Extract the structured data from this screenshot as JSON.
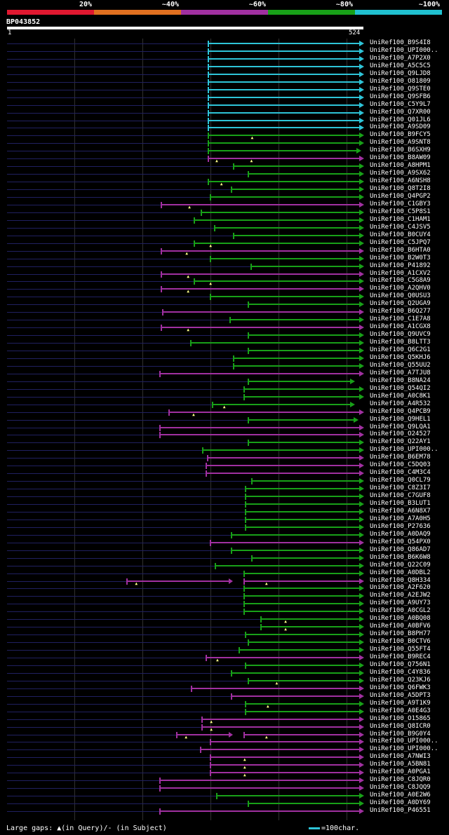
{
  "legend": {
    "segments": [
      {
        "label": "20%",
        "color": "#e01830"
      },
      {
        "label": "~40%",
        "color": "#e07020"
      },
      {
        "label": "~60%",
        "color": "#a030a0"
      },
      {
        "label": "~80%",
        "color": "#18a018"
      },
      {
        "label": "~100%",
        "color": "#20c0d0"
      }
    ]
  },
  "query": {
    "name": "BP043852",
    "start_label": "1",
    "end_label": "524",
    "length": 524
  },
  "hits": [
    {
      "name": "UniRef100_B9S4I8",
      "start": 295,
      "end": 524,
      "color": "#2ec4d8",
      "arrow": "right",
      "gaps": []
    },
    {
      "name": "UniRef100_UPI000..",
      "start": 295,
      "end": 524,
      "color": "#2ec4d8",
      "arrow": "right",
      "gaps": []
    },
    {
      "name": "UniRef100_A7P2X0",
      "start": 295,
      "end": 524,
      "color": "#2ec4d8",
      "arrow": "right",
      "gaps": []
    },
    {
      "name": "UniRef100_A5C5C5",
      "start": 295,
      "end": 524,
      "color": "#2ec4d8",
      "arrow": "right",
      "gaps": []
    },
    {
      "name": "UniRef100_Q9LJD8",
      "start": 295,
      "end": 524,
      "color": "#2ec4d8",
      "arrow": "right",
      "gaps": []
    },
    {
      "name": "UniRef100_O81809",
      "start": 295,
      "end": 524,
      "color": "#2ec4d8",
      "arrow": "right",
      "gaps": []
    },
    {
      "name": "UniRef100_Q9STE0",
      "start": 295,
      "end": 524,
      "color": "#2ec4d8",
      "arrow": "right",
      "gaps": []
    },
    {
      "name": "UniRef100_Q9SFB6",
      "start": 295,
      "end": 524,
      "color": "#2ec4d8",
      "arrow": "right",
      "gaps": []
    },
    {
      "name": "UniRef100_C5Y9L7",
      "start": 295,
      "end": 524,
      "color": "#2ec4d8",
      "arrow": "right",
      "gaps": []
    },
    {
      "name": "UniRef100_Q7XR00",
      "start": 295,
      "end": 524,
      "color": "#2ec4d8",
      "arrow": "right",
      "gaps": []
    },
    {
      "name": "UniRef100_Q01JL6",
      "start": 295,
      "end": 524,
      "color": "#2ec4d8",
      "arrow": "right",
      "gaps": []
    },
    {
      "name": "UniRef100_A9SD09",
      "start": 295,
      "end": 524,
      "color": "#2ec4d8",
      "arrow": "right",
      "gaps": []
    },
    {
      "name": "UniRef100_B9FCY5",
      "start": 295,
      "end": 524,
      "color": "#18a018",
      "arrow": "right",
      "gaps": [
        362
      ]
    },
    {
      "name": "UniRef100_A9SNT8",
      "start": 295,
      "end": 524,
      "color": "#18a018",
      "arrow": "right",
      "gaps": []
    },
    {
      "name": "UniRef100_B6SXH9",
      "start": 295,
      "end": 520,
      "color": "#18a018",
      "arrow": "right",
      "gaps": []
    },
    {
      "name": "UniRef100_B8AW09",
      "start": 295,
      "end": 524,
      "color": "#a030a0",
      "arrow": "right",
      "gaps": [
        310,
        361
      ]
    },
    {
      "name": "UniRef100_A8HPM1",
      "start": 332,
      "end": 524,
      "color": "#18a018",
      "arrow": "right",
      "gaps": []
    },
    {
      "name": "UniRef100_A9SX62",
      "start": 354,
      "end": 524,
      "color": "#18a018",
      "arrow": "right",
      "gaps": []
    },
    {
      "name": "UniRef100_A6NSH8",
      "start": 295,
      "end": 524,
      "color": "#18a018",
      "arrow": "right",
      "gaps": [
        317
      ]
    },
    {
      "name": "UniRef100_Q8T2I8",
      "start": 329,
      "end": 524,
      "color": "#18a018",
      "arrow": "right",
      "gaps": []
    },
    {
      "name": "UniRef100_Q4PGP2",
      "start": 299,
      "end": 524,
      "color": "#18a018",
      "arrow": "right",
      "gaps": []
    },
    {
      "name": "UniRef100_C1GBY3",
      "start": 226,
      "end": 524,
      "color": "#a030a0",
      "arrow": "right",
      "gaps": [
        270
      ]
    },
    {
      "name": "UniRef100_C5P8S1",
      "start": 285,
      "end": 524,
      "color": "#18a018",
      "arrow": "right",
      "gaps": []
    },
    {
      "name": "UniRef100_C1HAM1",
      "start": 275,
      "end": 524,
      "color": "#18a018",
      "arrow": "right",
      "gaps": []
    },
    {
      "name": "UniRef100_C4JSV5",
      "start": 305,
      "end": 524,
      "color": "#18a018",
      "arrow": "right",
      "gaps": []
    },
    {
      "name": "UniRef100_B0CUY4",
      "start": 333,
      "end": 524,
      "color": "#18a018",
      "arrow": "right",
      "gaps": []
    },
    {
      "name": "UniRef100_C5JPQ7",
      "start": 275,
      "end": 524,
      "color": "#18a018",
      "arrow": "right",
      "gaps": [
        301
      ]
    },
    {
      "name": "UniRef100_B6HTA0",
      "start": 226,
      "end": 524,
      "color": "#a030a0",
      "arrow": "right",
      "gaps": [
        266
      ]
    },
    {
      "name": "UniRef100_B2W0T3",
      "start": 299,
      "end": 524,
      "color": "#18a018",
      "arrow": "right",
      "gaps": []
    },
    {
      "name": "UniRef100_P41892",
      "start": 358,
      "end": 524,
      "color": "#18a018",
      "arrow": "right",
      "gaps": []
    },
    {
      "name": "UniRef100_A1CXV2",
      "start": 226,
      "end": 524,
      "color": "#a030a0",
      "arrow": "right",
      "gaps": [
        268
      ]
    },
    {
      "name": "UniRef100_C5G8A9",
      "start": 275,
      "end": 524,
      "color": "#18a018",
      "arrow": "right",
      "gaps": [
        301
      ]
    },
    {
      "name": "UniRef100_A2QHV0",
      "start": 226,
      "end": 524,
      "color": "#a030a0",
      "arrow": "right",
      "gaps": [
        268
      ]
    },
    {
      "name": "UniRef100_Q0USU3",
      "start": 299,
      "end": 524,
      "color": "#18a018",
      "arrow": "right",
      "gaps": []
    },
    {
      "name": "UniRef100_Q2UGA9",
      "start": 354,
      "end": 524,
      "color": "#18a018",
      "arrow": "right",
      "gaps": []
    },
    {
      "name": "UniRef100_B6Q277",
      "start": 229,
      "end": 524,
      "color": "#a030a0",
      "arrow": "right",
      "gaps": []
    },
    {
      "name": "UniRef100_C1E7A8",
      "start": 327,
      "end": 524,
      "color": "#18a018",
      "arrow": "right",
      "gaps": []
    },
    {
      "name": "UniRef100_A1CGX8",
      "start": 226,
      "end": 524,
      "color": "#a030a0",
      "arrow": "right",
      "gaps": [
        268
      ]
    },
    {
      "name": "UniRef100_Q9UVC9",
      "start": 354,
      "end": 524,
      "color": "#18a018",
      "arrow": "right",
      "gaps": []
    },
    {
      "name": "UniRef100_B8LTT3",
      "start": 270,
      "end": 524,
      "color": "#18a018",
      "arrow": "right",
      "gaps": []
    },
    {
      "name": "UniRef100_Q6C2G1",
      "start": 354,
      "end": 524,
      "color": "#18a018",
      "arrow": "right",
      "gaps": []
    },
    {
      "name": "UniRef100_Q5KHJ6",
      "start": 333,
      "end": 524,
      "color": "#18a018",
      "arrow": "right",
      "gaps": []
    },
    {
      "name": "UniRef100_Q55UU2",
      "start": 333,
      "end": 524,
      "color": "#18a018",
      "arrow": "right",
      "gaps": []
    },
    {
      "name": "UniRef100_A7TJU8",
      "start": 224,
      "end": 524,
      "color": "#a030a0",
      "arrow": "right",
      "gaps": []
    },
    {
      "name": "UniRef100_B8NA24",
      "start": 354,
      "end": 511,
      "color": "#18a018",
      "arrow": "right",
      "gaps": []
    },
    {
      "name": "UniRef100_Q54QI2",
      "start": 348,
      "end": 524,
      "color": "#18a018",
      "arrow": "right",
      "gaps": []
    },
    {
      "name": "UniRef100_A0C8K1",
      "start": 348,
      "end": 524,
      "color": "#18a018",
      "arrow": "right",
      "gaps": []
    },
    {
      "name": "UniRef100_A4R532",
      "start": 302,
      "end": 511,
      "color": "#18a018",
      "arrow": "right",
      "gaps": [
        321
      ]
    },
    {
      "name": "UniRef100_Q4PCB9",
      "start": 238,
      "end": 524,
      "color": "#a030a0",
      "arrow": "right",
      "gaps": [
        276
      ]
    },
    {
      "name": "UniRef100_Q9HEL1",
      "start": 354,
      "end": 516,
      "color": "#18a018",
      "arrow": "right",
      "gaps": []
    },
    {
      "name": "UniRef100_Q9LQA1",
      "start": 224,
      "end": 524,
      "color": "#a030a0",
      "arrow": "right",
      "gaps": []
    },
    {
      "name": "UniRef100_O24527",
      "start": 224,
      "end": 524,
      "color": "#a030a0",
      "arrow": "right",
      "gaps": []
    },
    {
      "name": "UniRef100_Q22AY1",
      "start": 354,
      "end": 524,
      "color": "#18a018",
      "arrow": "right",
      "gaps": []
    },
    {
      "name": "UniRef100_UPI000..",
      "start": 287,
      "end": 524,
      "color": "#18a018",
      "arrow": "right",
      "gaps": []
    },
    {
      "name": "UniRef100_B6EM78",
      "start": 294,
      "end": 524,
      "color": "#a030a0",
      "arrow": "right",
      "gaps": []
    },
    {
      "name": "UniRef100_C5DQ03",
      "start": 292,
      "end": 524,
      "color": "#a030a0",
      "arrow": "right",
      "gaps": []
    },
    {
      "name": "UniRef100_C4M3C4",
      "start": 292,
      "end": 524,
      "color": "#a030a0",
      "arrow": "right",
      "gaps": []
    },
    {
      "name": "UniRef100_Q0CL79",
      "start": 359,
      "end": 524,
      "color": "#18a018",
      "arrow": "right",
      "gaps": []
    },
    {
      "name": "UniRef100_C8Z3I7",
      "start": 350,
      "end": 524,
      "color": "#18a018",
      "arrow": "right",
      "gaps": []
    },
    {
      "name": "UniRef100_C7GUF8",
      "start": 350,
      "end": 524,
      "color": "#18a018",
      "arrow": "right",
      "gaps": []
    },
    {
      "name": "UniRef100_B3LUT1",
      "start": 350,
      "end": 524,
      "color": "#18a018",
      "arrow": "right",
      "gaps": []
    },
    {
      "name": "UniRef100_A6N8X7",
      "start": 350,
      "end": 524,
      "color": "#18a018",
      "arrow": "right",
      "gaps": []
    },
    {
      "name": "UniRef100_A7A0H5",
      "start": 350,
      "end": 524,
      "color": "#18a018",
      "arrow": "right",
      "gaps": []
    },
    {
      "name": "UniRef100_P27636",
      "start": 350,
      "end": 524,
      "color": "#18a018",
      "arrow": "right",
      "gaps": []
    },
    {
      "name": "UniRef100_A0DAQ9",
      "start": 329,
      "end": 524,
      "color": "#18a018",
      "arrow": "right",
      "gaps": []
    },
    {
      "name": "UniRef100_Q54PX0",
      "start": 299,
      "end": 524,
      "color": "#a030a0",
      "arrow": "right",
      "gaps": []
    },
    {
      "name": "UniRef100_Q86AD7",
      "start": 329,
      "end": 524,
      "color": "#18a018",
      "arrow": "right",
      "gaps": []
    },
    {
      "name": "UniRef100_B6K6W8",
      "start": 359,
      "end": 524,
      "color": "#18a018",
      "arrow": "right",
      "gaps": []
    },
    {
      "name": "UniRef100_Q22C09",
      "start": 306,
      "end": 524,
      "color": "#18a018",
      "arrow": "right",
      "gaps": []
    },
    {
      "name": "UniRef100_A0DBL2",
      "start": 348,
      "end": 524,
      "color": "#18a018",
      "arrow": "right",
      "gaps": []
    },
    {
      "name": "UniRef100_Q8H334",
      "start": 176,
      "end": 524,
      "color": "#a030a0",
      "arrow": "right",
      "gaps": [
        192,
        383
      ],
      "split": [
        333,
        348
      ]
    },
    {
      "name": "UniRef100_A2F620",
      "start": 348,
      "end": 524,
      "color": "#18a018",
      "arrow": "right",
      "gaps": []
    },
    {
      "name": "UniRef100_A2EJW2",
      "start": 348,
      "end": 524,
      "color": "#18a018",
      "arrow": "right",
      "gaps": []
    },
    {
      "name": "UniRef100_A9UY73",
      "start": 348,
      "end": 524,
      "color": "#18a018",
      "arrow": "right",
      "gaps": []
    },
    {
      "name": "UniRef100_A0CGL2",
      "start": 348,
      "end": 524,
      "color": "#18a018",
      "arrow": "right",
      "gaps": []
    },
    {
      "name": "UniRef100_A0BQ08",
      "start": 373,
      "end": 524,
      "color": "#18a018",
      "arrow": "right",
      "gaps": [
        411
      ]
    },
    {
      "name": "UniRef100_A0BFV6",
      "start": 373,
      "end": 524,
      "color": "#18a018",
      "arrow": "right",
      "gaps": [
        411
      ]
    },
    {
      "name": "UniRef100_B8PH77",
      "start": 350,
      "end": 524,
      "color": "#18a018",
      "arrow": "right",
      "gaps": []
    },
    {
      "name": "UniRef100_B0CTV6",
      "start": 354,
      "end": 524,
      "color": "#18a018",
      "arrow": "right",
      "gaps": []
    },
    {
      "name": "UniRef100_Q55FT4",
      "start": 341,
      "end": 524,
      "color": "#18a018",
      "arrow": "right",
      "gaps": []
    },
    {
      "name": "UniRef100_B9REC4",
      "start": 292,
      "end": 524,
      "color": "#a030a0",
      "arrow": "right",
      "gaps": [
        311
      ]
    },
    {
      "name": "UniRef100_Q756N1",
      "start": 350,
      "end": 524,
      "color": "#18a018",
      "arrow": "right",
      "gaps": []
    },
    {
      "name": "UniRef100_C4Y836",
      "start": 329,
      "end": 524,
      "color": "#18a018",
      "arrow": "right",
      "gaps": []
    },
    {
      "name": "UniRef100_Q23KJ6",
      "start": 354,
      "end": 524,
      "color": "#18a018",
      "arrow": "right",
      "gaps": [
        398
      ]
    },
    {
      "name": "UniRef100_Q6FWK3",
      "start": 271,
      "end": 524,
      "color": "#a030a0",
      "arrow": "right",
      "gaps": []
    },
    {
      "name": "UniRef100_A5DPT3",
      "start": 329,
      "end": 524,
      "color": "#a030a0",
      "arrow": "right",
      "gaps": []
    },
    {
      "name": "UniRef100_A9T1K9",
      "start": 350,
      "end": 524,
      "color": "#18a018",
      "arrow": "right",
      "gaps": [
        385
      ]
    },
    {
      "name": "UniRef100_A0E4G3",
      "start": 350,
      "end": 524,
      "color": "#18a018",
      "arrow": "right",
      "gaps": []
    },
    {
      "name": "UniRef100_O15865",
      "start": 286,
      "end": 524,
      "color": "#a030a0",
      "arrow": "right",
      "gaps": [
        302
      ]
    },
    {
      "name": "UniRef100_Q8ICR0",
      "start": 286,
      "end": 524,
      "color": "#a030a0",
      "arrow": "right",
      "gaps": [
        302
      ]
    },
    {
      "name": "UniRef100_B9G0Y4",
      "start": 249,
      "end": 524,
      "color": "#a030a0",
      "arrow": "right",
      "gaps": [
        265,
        383
      ],
      "split": [
        333,
        348
      ]
    },
    {
      "name": "UniRef100_UPI000..",
      "start": 299,
      "end": 524,
      "color": "#a030a0",
      "arrow": "right",
      "gaps": []
    },
    {
      "name": "UniRef100_UPI000..",
      "start": 284,
      "end": 524,
      "color": "#a030a0",
      "arrow": "right",
      "gaps": []
    },
    {
      "name": "UniRef100_A7NWI3",
      "start": 299,
      "end": 524,
      "color": "#a030a0",
      "arrow": "right",
      "gaps": [
        351
      ]
    },
    {
      "name": "UniRef100_A5BN81",
      "start": 299,
      "end": 524,
      "color": "#a030a0",
      "arrow": "right",
      "gaps": [
        351
      ]
    },
    {
      "name": "UniRef100_A0PGA1",
      "start": 299,
      "end": 524,
      "color": "#a030a0",
      "arrow": "right",
      "gaps": [
        351
      ]
    },
    {
      "name": "UniRef100_C8JQR0",
      "start": 224,
      "end": 524,
      "color": "#a030a0",
      "arrow": "right",
      "gaps": []
    },
    {
      "name": "UniRef100_C8JQQ9",
      "start": 224,
      "end": 524,
      "color": "#a030a0",
      "arrow": "right",
      "gaps": []
    },
    {
      "name": "UniRef100_A0E2W6",
      "start": 308,
      "end": 524,
      "color": "#18a018",
      "arrow": "right",
      "gaps": []
    },
    {
      "name": "UniRef100_A0DY69",
      "start": 354,
      "end": 524,
      "color": "#18a018",
      "arrow": "right",
      "gaps": []
    },
    {
      "name": "UniRef100_P46551",
      "start": 224,
      "end": 524,
      "color": "#a030a0",
      "arrow": "right",
      "gaps": []
    }
  ],
  "footer": {
    "text": "Large gaps: ▲(in Query)/- (in Subject)",
    "scale_text": "=100char."
  }
}
